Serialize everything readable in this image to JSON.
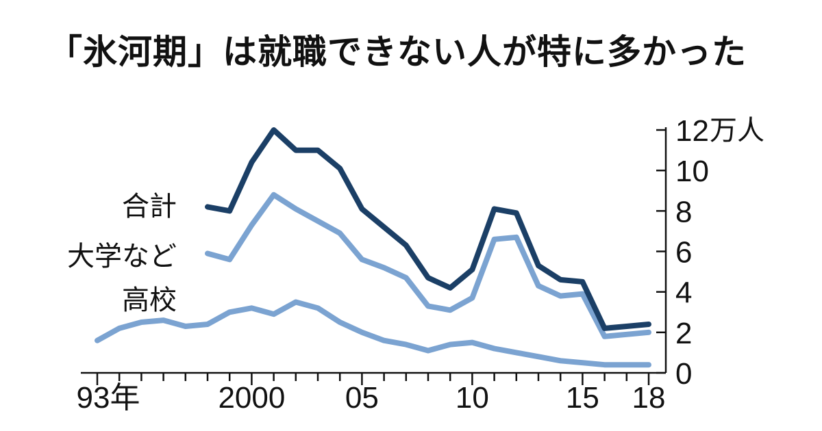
{
  "chart_data": {
    "type": "line",
    "title": "「氷河期」は就職できない人が特に多かった",
    "y_unit": "万人",
    "ylim": [
      0,
      12
    ],
    "y_ticks": [
      0,
      2,
      4,
      6,
      8,
      10,
      12
    ],
    "y_tick_labels": [
      "0",
      "2",
      "4",
      "6",
      "8",
      "10",
      "12"
    ],
    "x_ticks": [
      1993,
      1994,
      1995,
      1996,
      1997,
      1998,
      1999,
      2000,
      2001,
      2002,
      2003,
      2004,
      2005,
      2006,
      2007,
      2008,
      2009,
      2010,
      2011,
      2012,
      2013,
      2014,
      2015,
      2016,
      2017,
      2018
    ],
    "x_tick_labels": [
      {
        "year": 1993,
        "label": "93年"
      },
      {
        "year": 2000,
        "label": "2000"
      },
      {
        "year": 2005,
        "label": "05"
      },
      {
        "year": 2010,
        "label": "10"
      },
      {
        "year": 2015,
        "label": "15"
      },
      {
        "year": 2018,
        "label": "18"
      }
    ],
    "grid": false,
    "series": [
      {
        "name": "合計",
        "color": "#1b3f66",
        "x": [
          1998,
          1999,
          2000,
          2001,
          2002,
          2003,
          2004,
          2005,
          2006,
          2007,
          2008,
          2009,
          2010,
          2011,
          2012,
          2013,
          2014,
          2015,
          2016,
          2017,
          2018
        ],
        "values": [
          8.2,
          8.0,
          10.4,
          12.0,
          11.0,
          11.0,
          10.1,
          8.1,
          7.2,
          6.3,
          4.7,
          4.2,
          5.1,
          8.1,
          7.9,
          5.3,
          4.6,
          4.5,
          2.2,
          2.3,
          2.4
        ]
      },
      {
        "name": "大学など",
        "color": "#7ba3d1",
        "x": [
          1998,
          1999,
          2000,
          2001,
          2002,
          2003,
          2004,
          2005,
          2006,
          2007,
          2008,
          2009,
          2010,
          2011,
          2012,
          2013,
          2014,
          2015,
          2016,
          2017,
          2018
        ],
        "values": [
          5.9,
          5.6,
          7.3,
          8.8,
          8.1,
          7.5,
          6.9,
          5.6,
          5.2,
          4.7,
          3.3,
          3.1,
          3.7,
          6.6,
          6.7,
          4.3,
          3.8,
          3.9,
          1.8,
          1.9,
          2.0
        ]
      },
      {
        "name": "高校",
        "color": "#7ba3d1",
        "x": [
          1993,
          1994,
          1995,
          1996,
          1997,
          1998,
          1999,
          2000,
          2001,
          2002,
          2003,
          2004,
          2005,
          2006,
          2007,
          2008,
          2009,
          2010,
          2011,
          2012,
          2013,
          2014,
          2015,
          2016,
          2017,
          2018
        ],
        "values": [
          1.6,
          2.2,
          2.5,
          2.6,
          2.3,
          2.4,
          3.0,
          3.2,
          2.9,
          3.5,
          3.2,
          2.5,
          2.0,
          1.6,
          1.4,
          1.1,
          1.4,
          1.5,
          1.2,
          1.0,
          0.8,
          0.6,
          0.5,
          0.4,
          0.4,
          0.4
        ]
      }
    ]
  }
}
